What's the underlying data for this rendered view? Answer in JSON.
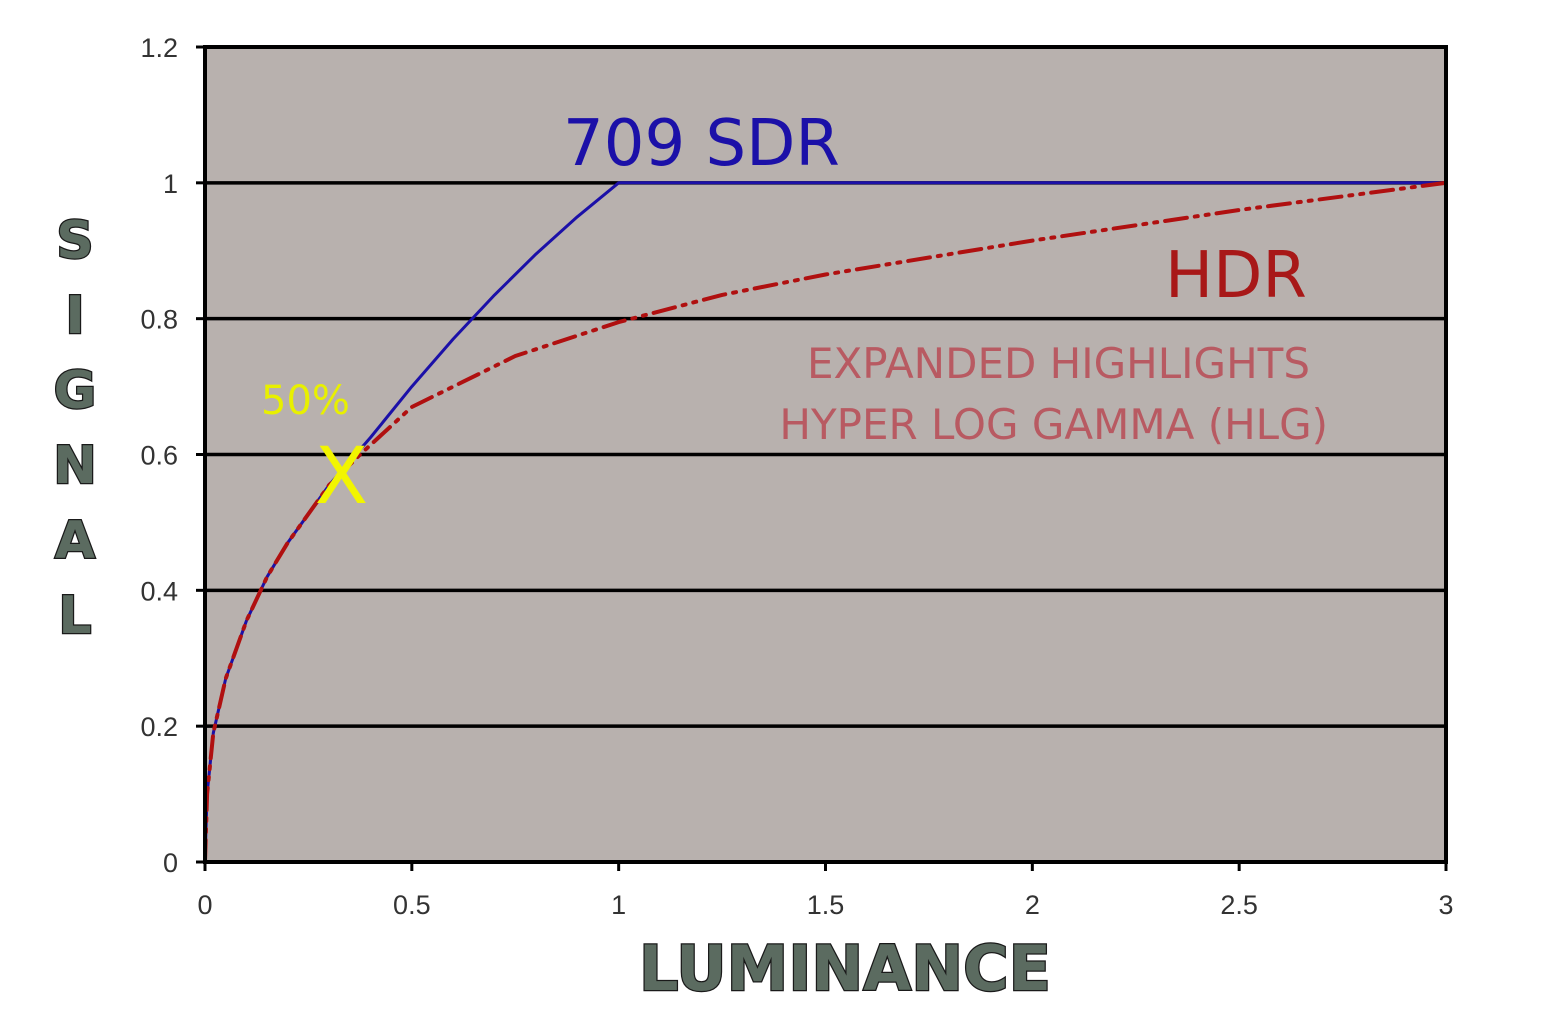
{
  "chart_data": {
    "type": "line",
    "xlabel": "LUMINANCE",
    "ylabel": "SIGNAL",
    "xlim": [
      0,
      3
    ],
    "ylim": [
      0,
      1.2
    ],
    "x_ticks": [
      0,
      0.5,
      1,
      1.5,
      2,
      2.5,
      3
    ],
    "x_tick_labels": [
      "0",
      "0.5",
      "1",
      "1.5",
      "2",
      "2.5",
      "3"
    ],
    "y_ticks": [
      0,
      0.2,
      0.4,
      0.6,
      0.8,
      1,
      1.2
    ],
    "y_tick_labels": [
      "0",
      "0.2",
      "0.4",
      "0.6",
      "0.8",
      "1",
      "1.2"
    ],
    "gridlines_y": [
      0.2,
      0.4,
      0.6,
      0.8,
      1
    ],
    "grid": true,
    "plot_background": "#b8b1ae",
    "series": [
      {
        "name": "709 SDR",
        "color": "#1b10a8",
        "style": "solid",
        "x": [
          0,
          0.005,
          0.02,
          0.05,
          0.1,
          0.15,
          0.2,
          0.3,
          0.4,
          0.5,
          0.6,
          0.7,
          0.8,
          0.9,
          1.0,
          3.0
        ],
        "y": [
          0,
          0.1,
          0.19,
          0.27,
          0.355,
          0.42,
          0.47,
          0.555,
          0.625,
          0.7,
          0.77,
          0.835,
          0.895,
          0.95,
          1.0,
          1.0
        ]
      },
      {
        "name": "HDR",
        "color": "#b01010",
        "style": "dash-dot",
        "x": [
          0,
          0.005,
          0.02,
          0.05,
          0.1,
          0.15,
          0.2,
          0.3,
          0.375,
          0.5,
          0.75,
          1.0,
          1.25,
          1.5,
          2.0,
          2.5,
          3.0
        ],
        "y": [
          0,
          0.1,
          0.19,
          0.27,
          0.355,
          0.42,
          0.47,
          0.555,
          0.6,
          0.67,
          0.745,
          0.795,
          0.835,
          0.865,
          0.915,
          0.96,
          1.0
        ]
      }
    ],
    "annotations": [
      {
        "text": "709 SDR",
        "color": "#1b10a8"
      },
      {
        "text": "HDR",
        "color": "#a81818"
      },
      {
        "text": "EXPANDED HIGHLIGHTS",
        "color": "#b85a62"
      },
      {
        "text": "HYPER LOG GAMMA (HLG)",
        "color": "#b85a62"
      },
      {
        "text": "50%",
        "color": "#e8f000"
      },
      {
        "text": "X",
        "color": "#f2f500",
        "x": 0.33,
        "y": 0.57
      }
    ]
  }
}
